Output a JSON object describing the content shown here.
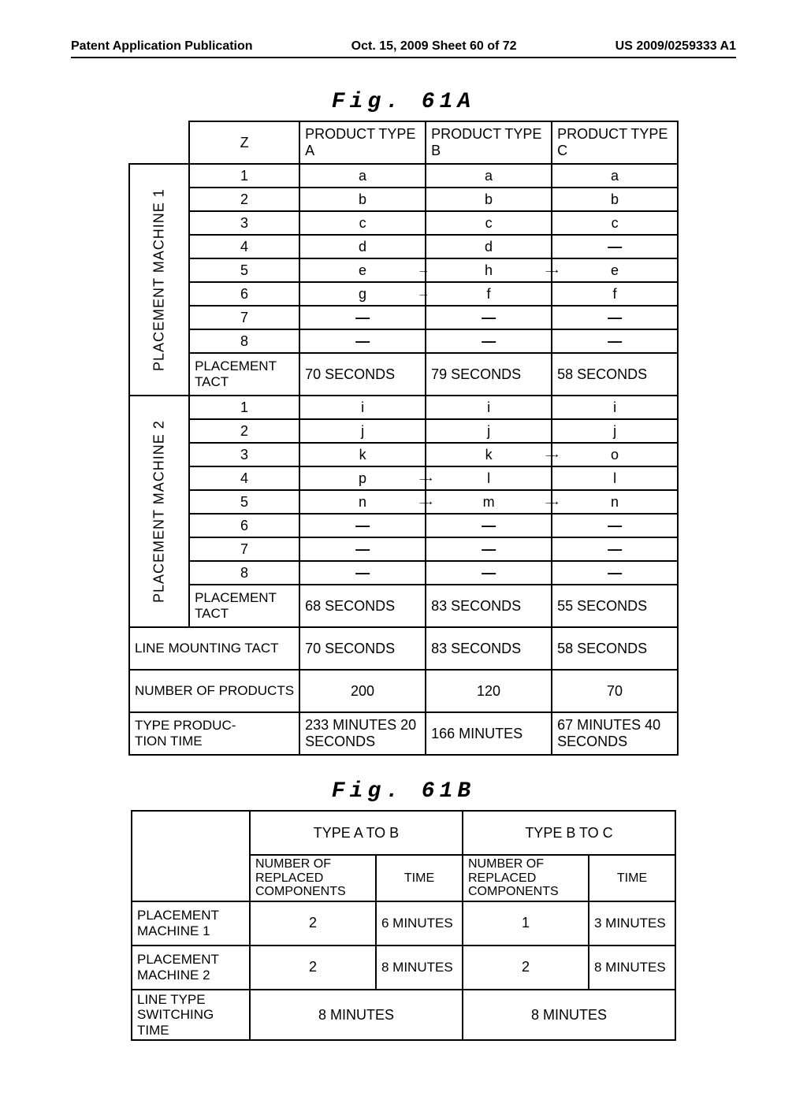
{
  "header": {
    "left": "Patent Application Publication",
    "center": "Oct. 15, 2009  Sheet 60 of 72",
    "right": "US 2009/0259333 A1"
  },
  "fig61a": {
    "title": "Fig. 61A",
    "headers": {
      "z": "Z",
      "a": "PRODUCT TYPE A",
      "b": "PRODUCT TYPE B",
      "c": "PRODUCT TYPE C"
    },
    "machine1_label": "PLACEMENT MACHINE 1",
    "machine2_label": "PLACEMENT MACHINE 2",
    "m1": {
      "r1": {
        "z": "1",
        "a": "a",
        "b": "a",
        "c": "a"
      },
      "r2": {
        "z": "2",
        "a": "b",
        "b": "b",
        "c": "b"
      },
      "r3": {
        "z": "3",
        "a": "c",
        "b": "c",
        "c": "c"
      },
      "r4": {
        "z": "4",
        "a": "d",
        "b": "d",
        "c": "—"
      },
      "r5": {
        "z": "5",
        "a": "e",
        "b": "h",
        "c": "e"
      },
      "r6": {
        "z": "6",
        "a": "g",
        "b": "f",
        "c": "f"
      },
      "r7": {
        "z": "7",
        "a": "—",
        "b": "—",
        "c": "—"
      },
      "r8": {
        "z": "8",
        "a": "—",
        "b": "—",
        "c": "—"
      },
      "tact_label": "PLACEMENT TACT",
      "tact": {
        "a": "70 SECONDS",
        "b": "79 SECONDS",
        "c": "58 SECONDS"
      }
    },
    "m2": {
      "r1": {
        "z": "1",
        "a": "i",
        "b": "i",
        "c": "i"
      },
      "r2": {
        "z": "2",
        "a": "j",
        "b": "j",
        "c": "j"
      },
      "r3": {
        "z": "3",
        "a": "k",
        "b": "k",
        "c": "o"
      },
      "r4": {
        "z": "4",
        "a": "p",
        "b": "l",
        "c": "l"
      },
      "r5": {
        "z": "5",
        "a": "n",
        "b": "m",
        "c": "n"
      },
      "r6": {
        "z": "6",
        "a": "—",
        "b": "—",
        "c": "—"
      },
      "r7": {
        "z": "7",
        "a": "—",
        "b": "—",
        "c": "—"
      },
      "r8": {
        "z": "8",
        "a": "—",
        "b": "—",
        "c": "—"
      },
      "tact_label": "PLACEMENT TACT",
      "tact": {
        "a": "68 SECONDS",
        "b": "83 SECONDS",
        "c": "55 SECONDS"
      }
    },
    "line_tact": {
      "label": "LINE MOUNTING TACT",
      "a": "70 SECONDS",
      "b": "83 SECONDS",
      "c": "58 SECONDS"
    },
    "num_products": {
      "label": "NUMBER OF PRODUCTS",
      "a": "200",
      "b": "120",
      "c": "70"
    },
    "prod_time": {
      "label": "TYPE PRODUC-\nTION TIME",
      "a": "233 MINUTES 20 SECONDS",
      "b": "166 MINUTES",
      "c": "67 MINUTES 40 SECONDS"
    }
  },
  "fig61b": {
    "title": "Fig. 61B",
    "grp_ab": "TYPE A TO B",
    "grp_bc": "TYPE B TO C",
    "sub_num": "NUMBER OF REPLACED COMPONENTS",
    "sub_time": "TIME",
    "rows": {
      "m1": {
        "label": "PLACEMENT MACHINE 1",
        "ab_n": "2",
        "ab_t": "6 MINUTES",
        "bc_n": "1",
        "bc_t": "3 MINUTES"
      },
      "m2": {
        "label": "PLACEMENT MACHINE 2",
        "ab_n": "2",
        "ab_t": "8 MINUTES",
        "bc_n": "2",
        "bc_t": "8 MINUTES"
      },
      "sw": {
        "label": "LINE TYPE SWITCHING TIME",
        "ab": "8 MINUTES",
        "bc": "8 MINUTES"
      }
    }
  }
}
